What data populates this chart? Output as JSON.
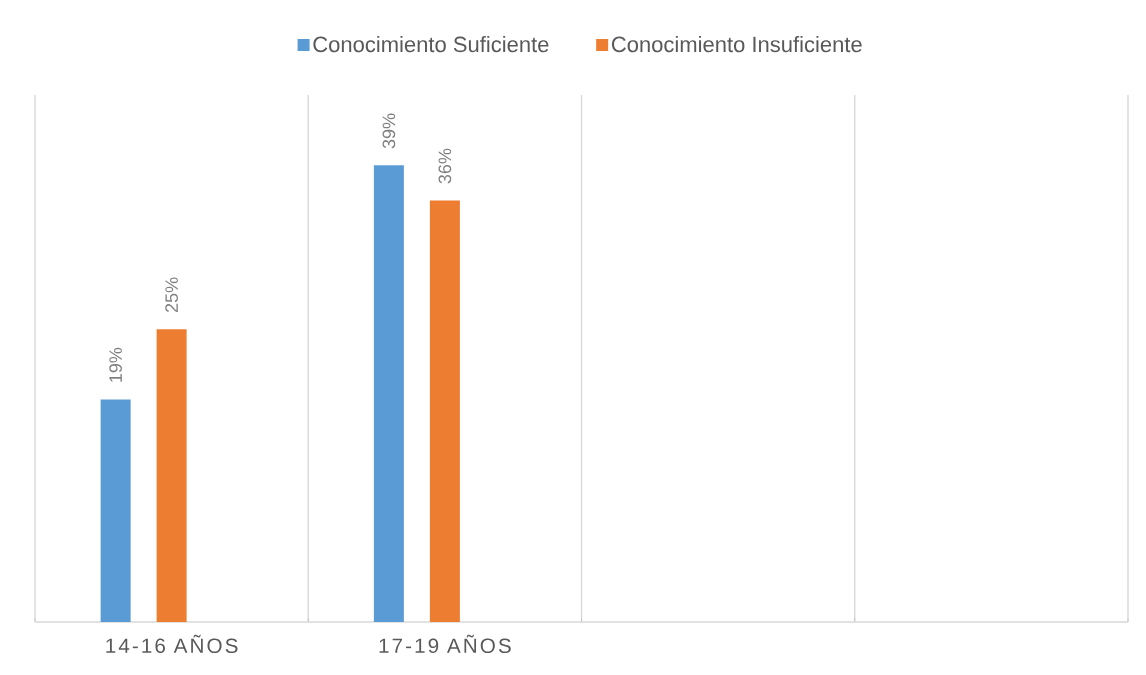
{
  "chart_data": {
    "type": "bar",
    "categories": [
      "14-16 AÑOS",
      "17-19 AÑOS",
      null,
      null
    ],
    "series": [
      {
        "name": "Conocimiento Suficiente",
        "color": "#5b9bd5",
        "values": [
          19,
          39,
          null,
          null
        ],
        "value_labels": [
          "19%",
          "39%",
          null,
          null
        ]
      },
      {
        "name": "Conocimiento Insuficiente",
        "color": "#ed7d31",
        "values": [
          25,
          36,
          null,
          null
        ],
        "value_labels": [
          "25%",
          "36%",
          null,
          null
        ]
      }
    ],
    "ylim": [
      0,
      45
    ],
    "tick_labels": "x",
    "grid": "x",
    "legend": "top"
  }
}
